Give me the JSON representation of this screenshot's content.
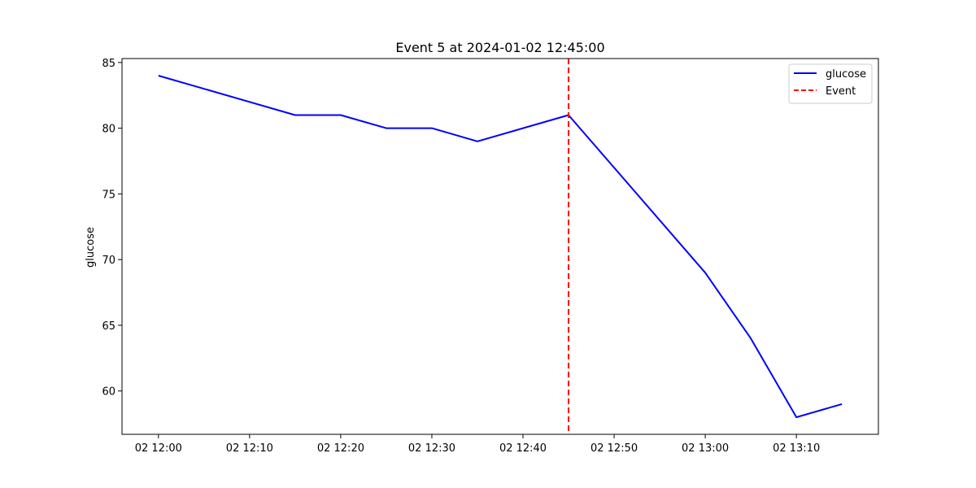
{
  "chart_data": {
    "type": "line",
    "title": "Event 5 at 2024-01-02 12:45:00",
    "xlabel": "",
    "ylabel": "glucose",
    "x": [
      "2024-01-02 12:00",
      "2024-01-02 12:15",
      "2024-01-02 12:20",
      "2024-01-02 12:25",
      "2024-01-02 12:30",
      "2024-01-02 12:35",
      "2024-01-02 12:45",
      "2024-01-02 13:00",
      "2024-01-02 13:05",
      "2024-01-02 13:10",
      "2024-01-02 13:15"
    ],
    "series": [
      {
        "name": "glucose",
        "color": "#0000ff",
        "values": [
          84,
          81,
          81,
          80,
          80,
          79,
          81,
          69,
          64,
          58,
          59
        ]
      }
    ],
    "event": {
      "name": "Event",
      "x": "2024-01-02 12:45",
      "color": "#ff0000",
      "style": "dashed"
    },
    "xlim": [
      "2024-01-02 11:56",
      "2024-01-02 13:19"
    ],
    "ylim": [
      56.7,
      85.3
    ],
    "x_ticks": [
      "2024-01-02 12:00",
      "2024-01-02 12:10",
      "2024-01-02 12:20",
      "2024-01-02 12:30",
      "2024-01-02 12:40",
      "2024-01-02 12:50",
      "2024-01-02 13:00",
      "2024-01-02 13:10"
    ],
    "x_tick_labels": [
      "02 12:00",
      "02 12:10",
      "02 12:20",
      "02 12:30",
      "02 12:40",
      "02 12:50",
      "02 13:00",
      "02 13:10"
    ],
    "y_ticks": [
      60,
      65,
      70,
      75,
      80,
      85
    ],
    "grid": false,
    "legend_position": "top-right"
  }
}
